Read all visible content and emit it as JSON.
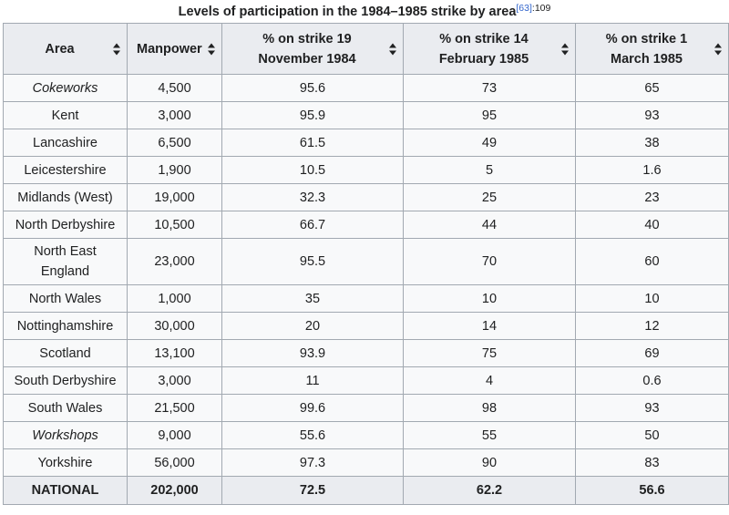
{
  "caption": {
    "title": "Levels of participation in the 1984–1985 strike by area",
    "ref": "[63]",
    "page": ":109"
  },
  "headers": [
    {
      "line1": "Area",
      "line2": ""
    },
    {
      "line1": "Manpower",
      "line2": ""
    },
    {
      "line1": "% on strike 19",
      "line2": "November 1984"
    },
    {
      "line1": "% on strike 14",
      "line2": "February 1985"
    },
    {
      "line1": "% on strike 1",
      "line2": "March 1985"
    }
  ],
  "rows": [
    {
      "area": "Cokeworks",
      "italic": true,
      "manpower": "4,500",
      "nov84": "95.6",
      "feb85": "73",
      "mar85": "65"
    },
    {
      "area": "Kent",
      "manpower": "3,000",
      "nov84": "95.9",
      "feb85": "95",
      "mar85": "93"
    },
    {
      "area": "Lancashire",
      "manpower": "6,500",
      "nov84": "61.5",
      "feb85": "49",
      "mar85": "38"
    },
    {
      "area": "Leicestershire",
      "manpower": "1,900",
      "nov84": "10.5",
      "feb85": "5",
      "mar85": "1.6"
    },
    {
      "area": "Midlands (West)",
      "manpower": "19,000",
      "nov84": "32.3",
      "feb85": "25",
      "mar85": "23"
    },
    {
      "area": "North Derbyshire",
      "manpower": "10,500",
      "nov84": "66.7",
      "feb85": "44",
      "mar85": "40"
    },
    {
      "area": "North East England",
      "area_line1": "North East",
      "area_line2": "England",
      "manpower": "23,000",
      "nov84": "95.5",
      "feb85": "70",
      "mar85": "60"
    },
    {
      "area": "North Wales",
      "manpower": "1,000",
      "nov84": "35",
      "feb85": "10",
      "mar85": "10"
    },
    {
      "area": "Nottinghamshire",
      "manpower": "30,000",
      "nov84": "20",
      "feb85": "14",
      "mar85": "12"
    },
    {
      "area": "Scotland",
      "manpower": "13,100",
      "nov84": "93.9",
      "feb85": "75",
      "mar85": "69"
    },
    {
      "area": "South Derbyshire",
      "manpower": "3,000",
      "nov84": "11",
      "feb85": "4",
      "mar85": "0.6"
    },
    {
      "area": "South Wales",
      "manpower": "21,500",
      "nov84": "99.6",
      "feb85": "98",
      "mar85": "93"
    },
    {
      "area": "Workshops",
      "italic": true,
      "manpower": "9,000",
      "nov84": "55.6",
      "feb85": "55",
      "mar85": "50"
    },
    {
      "area": "Yorkshire",
      "manpower": "56,000",
      "nov84": "97.3",
      "feb85": "90",
      "mar85": "83"
    }
  ],
  "total": {
    "area": "NATIONAL",
    "manpower": "202,000",
    "nov84": "72.5",
    "feb85": "62.2",
    "mar85": "56.6"
  },
  "icons": {
    "sort": "sort-up-down-icon"
  },
  "colors": {
    "header_bg": "#eaecf0",
    "body_bg": "#f8f9fa",
    "border": "#a2a9b1",
    "link": "#3366cc"
  }
}
